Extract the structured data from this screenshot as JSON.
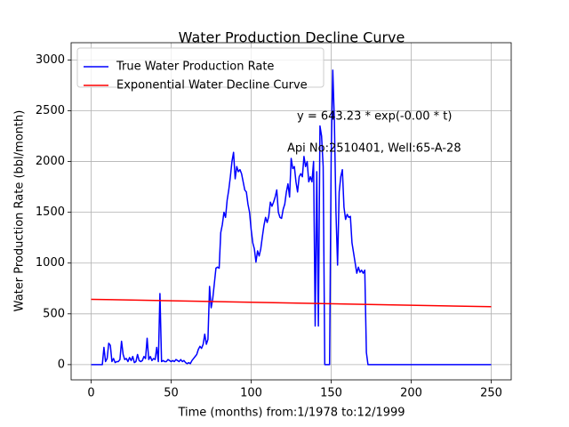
{
  "chart_data": {
    "type": "line",
    "title": "Water Production Decline Curve",
    "xlabel": "Time (months) from:1/1978 to:12/1999",
    "ylabel": "Water Production Rate (bbl/month)",
    "annotations": [
      "y = 643.23 * exp(-0.00 * t)",
      "Api No:2510401, Well:65-A-28"
    ],
    "series": [
      {
        "name": "True Water Production Rate",
        "color": "#0000ff",
        "x": [
          0,
          1,
          2,
          3,
          4,
          5,
          6,
          7,
          8,
          9,
          10,
          11,
          12,
          13,
          14,
          15,
          16,
          17,
          18,
          19,
          20,
          21,
          22,
          23,
          24,
          25,
          26,
          27,
          28,
          29,
          30,
          31,
          32,
          33,
          34,
          35,
          36,
          37,
          38,
          39,
          40,
          41,
          42,
          43,
          44,
          45,
          46,
          47,
          48,
          49,
          50,
          51,
          52,
          53,
          54,
          55,
          56,
          57,
          58,
          59,
          60,
          61,
          62,
          63,
          64,
          65,
          66,
          67,
          68,
          69,
          70,
          71,
          72,
          73,
          74,
          75,
          76,
          77,
          78,
          79,
          80,
          81,
          82,
          83,
          84,
          85,
          86,
          87,
          88,
          89,
          90,
          91,
          92,
          93,
          94,
          95,
          96,
          97,
          98,
          99,
          100,
          101,
          102,
          103,
          104,
          105,
          106,
          107,
          108,
          109,
          110,
          111,
          112,
          113,
          114,
          115,
          116,
          117,
          118,
          119,
          120,
          121,
          122,
          123,
          124,
          125,
          126,
          127,
          128,
          129,
          130,
          131,
          132,
          133,
          134,
          135,
          136,
          137,
          138,
          139,
          140,
          141,
          142,
          143,
          144,
          145,
          146,
          147,
          148,
          149,
          150,
          151,
          152,
          153,
          154,
          155,
          156,
          157,
          158,
          159,
          160,
          161,
          162,
          163,
          164,
          165,
          166,
          167,
          168,
          169,
          170,
          171,
          172,
          173,
          174,
          175,
          250
        ],
        "values": [
          0,
          0,
          0,
          0,
          0,
          0,
          0,
          0,
          170,
          30,
          60,
          210,
          190,
          30,
          60,
          20,
          30,
          30,
          50,
          230,
          100,
          50,
          60,
          30,
          70,
          40,
          80,
          20,
          30,
          100,
          40,
          30,
          40,
          80,
          60,
          260,
          50,
          80,
          40,
          60,
          50,
          170,
          30,
          700,
          30,
          40,
          30,
          30,
          50,
          40,
          30,
          40,
          30,
          50,
          40,
          30,
          50,
          30,
          40,
          20,
          10,
          20,
          10,
          40,
          60,
          80,
          100,
          150,
          180,
          160,
          200,
          300,
          200,
          250,
          770,
          560,
          650,
          800,
          950,
          960,
          950,
          1300,
          1380,
          1500,
          1450,
          1620,
          1720,
          1850,
          2000,
          2090,
          1830,
          1950,
          1900,
          1920,
          1880,
          1800,
          1720,
          1700,
          1580,
          1500,
          1330,
          1200,
          1140,
          1010,
          1120,
          1070,
          1140,
          1260,
          1370,
          1450,
          1400,
          1460,
          1600,
          1560,
          1600,
          1650,
          1720,
          1500,
          1450,
          1440,
          1530,
          1580,
          1700,
          1780,
          1650,
          2030,
          1930,
          1950,
          1800,
          1700,
          1850,
          1880,
          1850,
          2050,
          1950,
          2000,
          1800,
          1850,
          1800,
          2000,
          380,
          1900,
          380,
          2350,
          2250,
          1950,
          0,
          0,
          0,
          0,
          2050,
          2900,
          2400,
          1500,
          980,
          1700,
          1850,
          1920,
          1550,
          1430,
          1480,
          1450,
          1460,
          1200,
          1100,
          1000,
          900,
          960,
          910,
          930,
          900,
          930,
          120,
          0,
          0,
          0,
          0
        ]
      },
      {
        "name": "Exponential Water Decline Curve",
        "color": "#ff0000",
        "x": [
          0,
          250
        ],
        "values": [
          643.23,
          570
        ]
      }
    ],
    "xlim": [
      -12.5,
      262.5
    ],
    "ylim": [
      -150,
      3170
    ],
    "xticks": [
      0,
      50,
      100,
      150,
      200,
      250
    ],
    "yticks": [
      0,
      500,
      1000,
      1500,
      2000,
      2500,
      3000
    ],
    "grid": true,
    "legend": "upper left"
  }
}
